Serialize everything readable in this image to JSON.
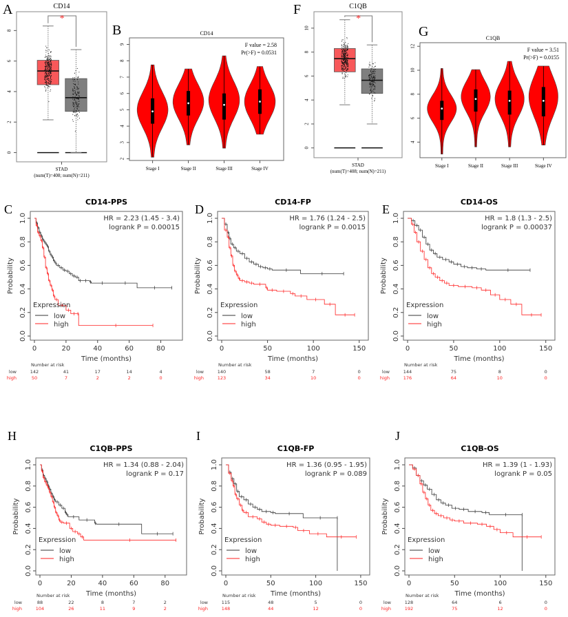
{
  "colors": {
    "tumor": "#f8585a",
    "normal": "#7f7f7f",
    "violin": "#ff0000",
    "km_low": "#333333",
    "km_high": "#ff2020",
    "sig": "#ff2d2d"
  },
  "chart_data": [
    {
      "panel": "A",
      "type": "box",
      "title": "CD14",
      "xlabel": "STAD",
      "xsub": "(num(T)=408; num(N)=211)",
      "ylim": [
        -0.2,
        9.1
      ],
      "yticks": [
        0,
        2,
        4,
        6,
        8
      ],
      "significance": "*",
      "groups": [
        {
          "name": "Tumor",
          "q1": 4.45,
          "median": 5.35,
          "q3": 6.05,
          "whisker_low": 2.15,
          "whisker_high": 8.3,
          "n": 408
        },
        {
          "name": "Normal",
          "q1": 2.7,
          "median": 3.6,
          "q3": 4.85,
          "whisker_low": 0,
          "whisker_high": 6.75,
          "n": 211
        }
      ]
    },
    {
      "panel": "B",
      "type": "violin",
      "title": "CD14",
      "annotation": [
        "F value = 2.58",
        "Pr(>F) = 0.0531"
      ],
      "categories": [
        "Stage I",
        "Stage II",
        "Stage III",
        "Stage IV"
      ],
      "ylim": [
        1.9,
        9.4
      ],
      "yticks": [
        2,
        3,
        4,
        5,
        6,
        7,
        8,
        9
      ],
      "stats": [
        {
          "min": 2.1,
          "q1": 4.15,
          "median": 4.9,
          "q3": 5.7,
          "max": 7.75,
          "mode": 5.0
        },
        {
          "min": 2.85,
          "q1": 4.65,
          "median": 5.4,
          "q3": 6.15,
          "max": 7.5,
          "mode": 5.5
        },
        {
          "min": 2.65,
          "q1": 4.4,
          "median": 5.3,
          "q3": 6.0,
          "max": 8.3,
          "mode": 5.6
        },
        {
          "min": 3.5,
          "q1": 4.75,
          "median": 5.5,
          "q3": 6.25,
          "max": 7.65,
          "mode": 5.5
        }
      ]
    },
    {
      "panel": "F",
      "type": "box",
      "title": "C1QB",
      "xlabel": "STAD",
      "xsub": "(num(T)=408; num(N)=211)",
      "ylim": [
        -0.3,
        11.2
      ],
      "yticks": [
        0,
        2,
        4,
        6,
        8,
        10
      ],
      "significance": "*",
      "groups": [
        {
          "name": "Tumor",
          "q1": 6.35,
          "median": 7.45,
          "q3": 8.3,
          "whisker_low": 3.6,
          "whisker_high": 10.7,
          "n": 408
        },
        {
          "name": "Normal",
          "q1": 4.55,
          "median": 5.65,
          "q3": 6.6,
          "whisker_low": 2.0,
          "whisker_high": 8.6,
          "n": 211
        }
      ]
    },
    {
      "panel": "G",
      "type": "violin",
      "title": "C1QB",
      "annotation": [
        "F value = 3.51",
        "Pr(>F) = 0.0155"
      ],
      "categories": [
        "Stage I",
        "Stage II",
        "Stage III",
        "Stage IV"
      ],
      "ylim": [
        2.7,
        12.3
      ],
      "yticks": [
        4,
        6,
        8,
        10,
        12
      ],
      "stats": [
        {
          "min": 3.0,
          "q1": 5.85,
          "median": 6.8,
          "q3": 7.45,
          "max": 10.15,
          "mode": 6.8
        },
        {
          "min": 3.6,
          "q1": 6.55,
          "median": 7.6,
          "q3": 8.4,
          "max": 10.05,
          "mode": 7.8
        },
        {
          "min": 3.6,
          "q1": 6.3,
          "median": 7.45,
          "q3": 8.3,
          "max": 10.75,
          "mode": 7.6
        },
        {
          "min": 3.75,
          "q1": 6.15,
          "median": 7.45,
          "q3": 8.6,
          "max": 10.35,
          "mode": 7.8
        }
      ]
    },
    {
      "panel": "C",
      "type": "line",
      "title": "CD14-PPS",
      "hr": "HR = 2.23 (1.45 - 3.4)",
      "logrank": "logrank P = 0.00015",
      "xlabel": "Time (months)",
      "ylabel": "Probability",
      "xlim": [
        0,
        87
      ],
      "xticks": [
        0,
        20,
        40,
        60,
        80
      ],
      "ylim": [
        0,
        1
      ],
      "yticks": [
        0.0,
        0.2,
        0.4,
        0.6,
        0.8,
        1.0
      ],
      "legend_title": "Expression",
      "legend": [
        "low",
        "high"
      ],
      "risk": {
        "title": "Number at risk",
        "times": [
          0,
          20,
          40,
          60,
          80
        ],
        "low": [
          142,
          41,
          17,
          14,
          4
        ],
        "high": [
          50,
          7,
          2,
          2,
          0
        ]
      },
      "series": [
        {
          "name": "low",
          "x": [
            0,
            1,
            2,
            3,
            4,
            5,
            6,
            7,
            8,
            9,
            10,
            11,
            12,
            13,
            14,
            16,
            18,
            20,
            22,
            24,
            26,
            28,
            30,
            35,
            36,
            50,
            65,
            87
          ],
          "y": [
            1.0,
            0.96,
            0.92,
            0.88,
            0.85,
            0.82,
            0.8,
            0.78,
            0.76,
            0.72,
            0.69,
            0.67,
            0.64,
            0.62,
            0.6,
            0.58,
            0.56,
            0.55,
            0.53,
            0.51,
            0.5,
            0.47,
            0.47,
            0.46,
            0.45,
            0.45,
            0.41,
            0.41
          ]
        },
        {
          "name": "high",
          "x": [
            0,
            1,
            2,
            3,
            4,
            5,
            6,
            7,
            8,
            9,
            10,
            11,
            12,
            13,
            15,
            20,
            23,
            27,
            28,
            75
          ],
          "y": [
            1.0,
            0.94,
            0.88,
            0.85,
            0.81,
            0.75,
            0.67,
            0.58,
            0.53,
            0.47,
            0.43,
            0.39,
            0.34,
            0.31,
            0.26,
            0.22,
            0.19,
            0.19,
            0.09,
            0.09
          ]
        }
      ]
    },
    {
      "panel": "D",
      "type": "line",
      "title": "CD14-FP",
      "hr": "HR = 1.76 (1.24 - 2.5)",
      "logrank": "logrank P = 0.0015",
      "xlabel": "Time (months)",
      "ylabel": "Probability",
      "xlim": [
        0,
        150
      ],
      "xticks": [
        0,
        50,
        100,
        150
      ],
      "ylim": [
        0,
        1
      ],
      "yticks": [
        0.0,
        0.2,
        0.4,
        0.6,
        0.8,
        1.0
      ],
      "legend_title": "Expression",
      "legend": [
        "low",
        "high"
      ],
      "risk": {
        "title": "Number at risk",
        "times": [
          0,
          50,
          100,
          150
        ],
        "low": [
          140,
          58,
          7,
          0
        ],
        "high": [
          123,
          34,
          10,
          0
        ]
      },
      "series": [
        {
          "name": "low",
          "x": [
            0,
            3,
            6,
            8,
            10,
            13,
            16,
            20,
            25,
            30,
            35,
            40,
            45,
            50,
            55,
            86,
            133
          ],
          "y": [
            1.0,
            0.95,
            0.88,
            0.83,
            0.78,
            0.75,
            0.72,
            0.7,
            0.66,
            0.63,
            0.61,
            0.59,
            0.58,
            0.57,
            0.56,
            0.53,
            0.53
          ]
        },
        {
          "name": "high",
          "x": [
            0,
            3,
            6,
            8,
            10,
            12,
            14,
            16,
            18,
            20,
            25,
            30,
            35,
            48,
            50,
            60,
            75,
            80,
            93,
            112,
            124,
            145
          ],
          "y": [
            1.0,
            0.9,
            0.84,
            0.75,
            0.68,
            0.6,
            0.55,
            0.52,
            0.49,
            0.47,
            0.46,
            0.45,
            0.44,
            0.41,
            0.39,
            0.38,
            0.36,
            0.34,
            0.31,
            0.27,
            0.18,
            0.18
          ]
        }
      ]
    },
    {
      "panel": "E",
      "type": "line",
      "title": "CD14-OS",
      "hr": "HR = 1.8 (1.3 - 2.5)",
      "logrank": "logrank P = 0.00037",
      "xlabel": "Time (months)",
      "ylabel": "Probability",
      "xlim": [
        0,
        150
      ],
      "xticks": [
        0,
        50,
        100,
        150
      ],
      "ylim": [
        0,
        1
      ],
      "yticks": [
        0.0,
        0.2,
        0.4,
        0.6,
        0.8,
        1.0
      ],
      "legend_title": "Expression",
      "legend": [
        "low",
        "high"
      ],
      "risk": {
        "title": "Number at risk",
        "times": [
          0,
          50,
          100,
          150
        ],
        "low": [
          144,
          75,
          8,
          0
        ],
        "high": [
          176,
          64,
          10,
          0
        ]
      },
      "series": [
        {
          "name": "low",
          "x": [
            0,
            4,
            8,
            12,
            16,
            20,
            24,
            28,
            32,
            38,
            45,
            50,
            58,
            65,
            75,
            85,
            133
          ],
          "y": [
            1.0,
            0.98,
            0.94,
            0.9,
            0.84,
            0.78,
            0.73,
            0.7,
            0.67,
            0.65,
            0.63,
            0.61,
            0.59,
            0.58,
            0.57,
            0.56,
            0.56
          ]
        },
        {
          "name": "high",
          "x": [
            0,
            4,
            7,
            10,
            14,
            18,
            22,
            26,
            30,
            35,
            40,
            45,
            55,
            70,
            80,
            90,
            100,
            112,
            124,
            145
          ],
          "y": [
            1.0,
            0.95,
            0.88,
            0.8,
            0.72,
            0.65,
            0.58,
            0.53,
            0.5,
            0.47,
            0.45,
            0.43,
            0.42,
            0.41,
            0.39,
            0.35,
            0.31,
            0.27,
            0.18,
            0.18
          ]
        }
      ]
    },
    {
      "panel": "H",
      "type": "line",
      "title": "C1QB-PPS",
      "hr": "HR = 1.34 (0.88 - 2.04)",
      "logrank": "logrank P = 0.17",
      "xlabel": "Time (months)",
      "ylabel": "Probability",
      "xlim": [
        0,
        87
      ],
      "xticks": [
        0,
        20,
        40,
        60,
        80
      ],
      "ylim": [
        0,
        1
      ],
      "yticks": [
        0.0,
        0.2,
        0.4,
        0.6,
        0.8,
        1.0
      ],
      "legend_title": "Expression",
      "legend": [
        "low",
        "high"
      ],
      "risk": {
        "title": "Number at risk",
        "times": [
          0,
          20,
          40,
          60,
          80
        ],
        "low": [
          88,
          22,
          8,
          7,
          2
        ],
        "high": [
          104,
          26,
          11,
          9,
          2
        ]
      },
      "series": [
        {
          "name": "low",
          "x": [
            0,
            1,
            2,
            3,
            4,
            5,
            6,
            7,
            8,
            9,
            10,
            12,
            14,
            16,
            17,
            18,
            25,
            35,
            36,
            65,
            85
          ],
          "y": [
            1.0,
            0.95,
            0.9,
            0.87,
            0.84,
            0.8,
            0.77,
            0.73,
            0.7,
            0.67,
            0.65,
            0.62,
            0.59,
            0.55,
            0.53,
            0.51,
            0.48,
            0.45,
            0.44,
            0.35,
            0.35
          ]
        },
        {
          "name": "high",
          "x": [
            0,
            1,
            2,
            3,
            4,
            5,
            6,
            7,
            8,
            9,
            10,
            11,
            12,
            13,
            15,
            19,
            21,
            24,
            26,
            28,
            87
          ],
          "y": [
            1.0,
            0.94,
            0.88,
            0.84,
            0.81,
            0.78,
            0.74,
            0.7,
            0.65,
            0.6,
            0.55,
            0.52,
            0.48,
            0.46,
            0.45,
            0.4,
            0.37,
            0.35,
            0.32,
            0.29,
            0.29
          ]
        }
      ]
    },
    {
      "panel": "I",
      "type": "line",
      "title": "C1QB-FP",
      "hr": "HR = 1.36 (0.95 - 1.95)",
      "logrank": "logrank P = 0.089",
      "xlabel": "Time (months)",
      "ylabel": "Probability",
      "xlim": [
        0,
        150
      ],
      "xticks": [
        0,
        50,
        100,
        150
      ],
      "ylim": [
        0,
        1
      ],
      "yticks": [
        0.0,
        0.2,
        0.4,
        0.6,
        0.8,
        1.0
      ],
      "legend_title": "Expression",
      "legend": [
        "low",
        "high"
      ],
      "risk": {
        "title": "Number at risk",
        "times": [
          0,
          50,
          100,
          150
        ],
        "low": [
          115,
          48,
          5,
          0
        ],
        "high": [
          148,
          44,
          12,
          0
        ]
      },
      "series": [
        {
          "name": "low",
          "x": [
            0,
            3,
            6,
            9,
            12,
            15,
            20,
            25,
            30,
            35,
            40,
            50,
            55,
            86,
            124,
            124
          ],
          "y": [
            1.0,
            0.93,
            0.87,
            0.82,
            0.75,
            0.7,
            0.67,
            0.63,
            0.6,
            0.58,
            0.56,
            0.55,
            0.54,
            0.5,
            0.5,
            0.0
          ]
        },
        {
          "name": "high",
          "x": [
            0,
            3,
            6,
            8,
            10,
            12,
            15,
            18,
            20,
            25,
            35,
            40,
            45,
            50,
            60,
            75,
            80,
            93,
            112,
            145
          ],
          "y": [
            1.0,
            0.92,
            0.85,
            0.8,
            0.72,
            0.68,
            0.62,
            0.57,
            0.55,
            0.51,
            0.49,
            0.46,
            0.44,
            0.43,
            0.42,
            0.41,
            0.38,
            0.35,
            0.32,
            0.32
          ]
        }
      ]
    },
    {
      "panel": "J",
      "type": "line",
      "title": "C1QB-OS",
      "hr": "HR = 1.39 (1 - 1.93)",
      "logrank": "logrank P = 0.05",
      "xlabel": "Time (months)",
      "ylabel": "Probability",
      "xlim": [
        0,
        150
      ],
      "xticks": [
        0,
        50,
        100,
        150
      ],
      "ylim": [
        0,
        1
      ],
      "yticks": [
        0.0,
        0.2,
        0.4,
        0.6,
        0.8,
        1.0
      ],
      "legend_title": "Expression",
      "legend": [
        "low",
        "high"
      ],
      "risk": {
        "title": "Number at risk",
        "times": [
          0,
          50,
          100,
          150
        ],
        "low": [
          128,
          64,
          6,
          0
        ],
        "high": [
          192,
          75,
          12,
          0
        ]
      },
      "series": [
        {
          "name": "low",
          "x": [
            0,
            4,
            8,
            12,
            16,
            20,
            25,
            30,
            35,
            40,
            47,
            55,
            65,
            80,
            88,
            124,
            124
          ],
          "y": [
            1.0,
            0.97,
            0.9,
            0.85,
            0.81,
            0.77,
            0.72,
            0.67,
            0.64,
            0.62,
            0.59,
            0.58,
            0.56,
            0.55,
            0.53,
            0.53,
            0.0
          ]
        },
        {
          "name": "high",
          "x": [
            0,
            4,
            8,
            12,
            15,
            18,
            21,
            24,
            28,
            32,
            38,
            45,
            50,
            60,
            75,
            85,
            93,
            100,
            114,
            145
          ],
          "y": [
            1.0,
            0.96,
            0.9,
            0.82,
            0.74,
            0.68,
            0.62,
            0.57,
            0.54,
            0.52,
            0.5,
            0.48,
            0.47,
            0.45,
            0.44,
            0.42,
            0.39,
            0.36,
            0.32,
            0.32
          ]
        }
      ]
    }
  ]
}
